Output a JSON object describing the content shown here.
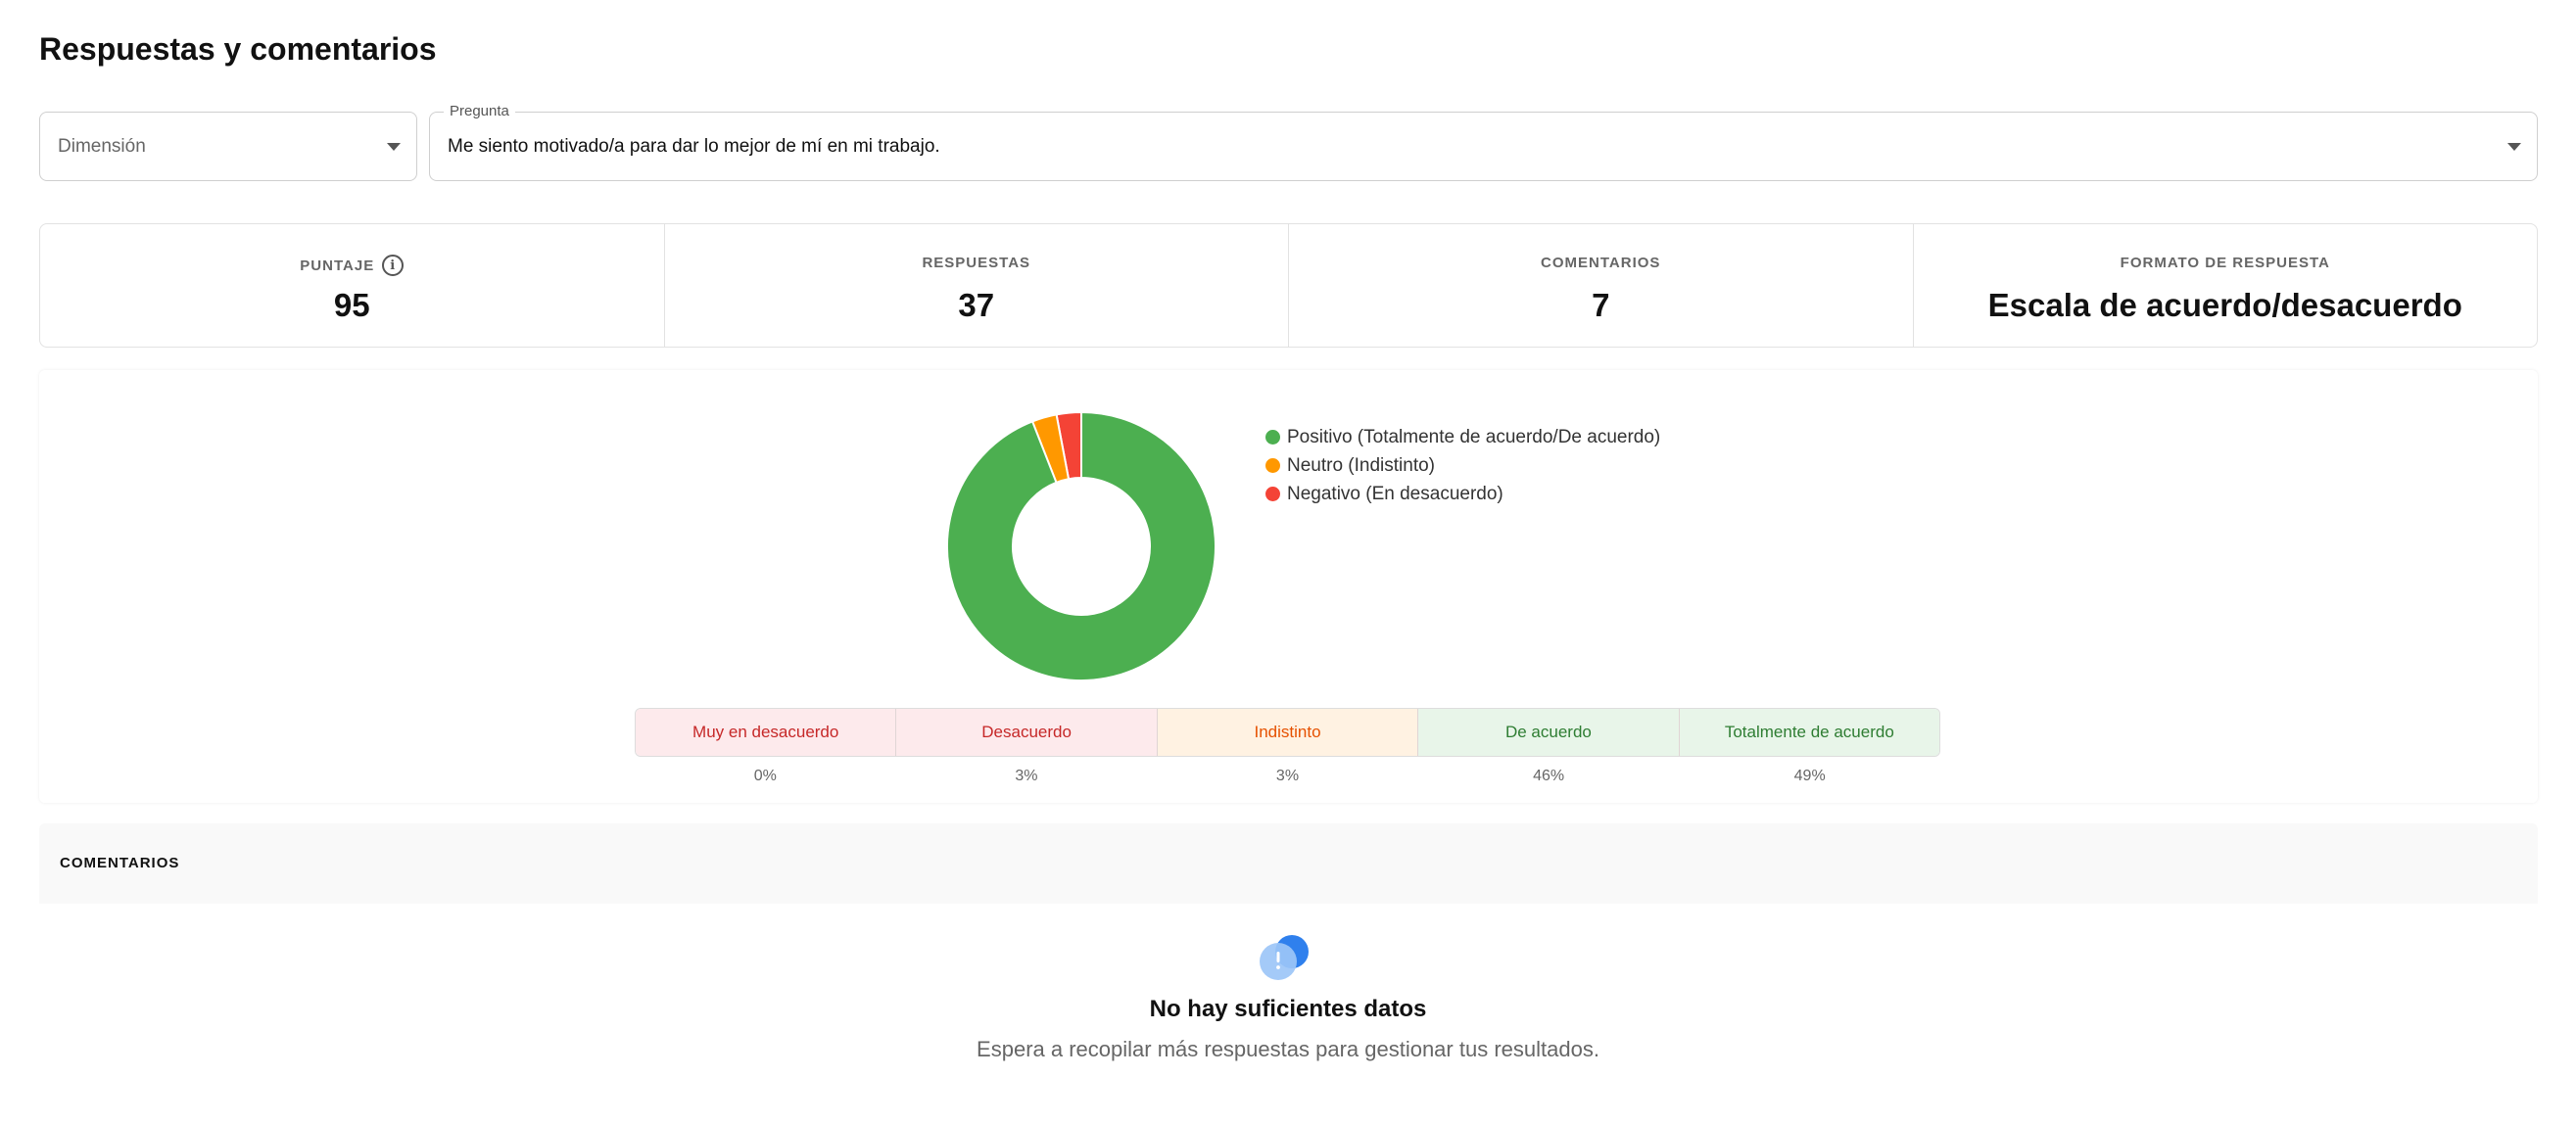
{
  "page": {
    "title": "Respuestas y comentarios"
  },
  "filters": {
    "dimension": {
      "placeholder": "Dimensión"
    },
    "question": {
      "label": "Pregunta",
      "value": "Me siento motivado/a para dar lo mejor de mí en mi trabajo."
    }
  },
  "stats": [
    {
      "label": "PUNTAJE",
      "value": "95",
      "info_icon": "info-circle-icon"
    },
    {
      "label": "RESPUESTAS",
      "value": "37"
    },
    {
      "label": "COMENTARIOS",
      "value": "7"
    },
    {
      "label": "FORMATO DE RESPUESTA",
      "value": "Escala de acuerdo/desacuerdo"
    }
  ],
  "chart_data": {
    "type": "pie",
    "series": [
      {
        "name": "Positivo (Totalmente de acuerdo/De acuerdo)",
        "value": 95,
        "color": "#4caf50"
      },
      {
        "name": "Neutro (Indistinto)",
        "value": 3,
        "color": "#ff9800"
      },
      {
        "name": "Negativo (En desacuerdo)",
        "value": 3,
        "color": "#f44336"
      }
    ]
  },
  "scale": [
    {
      "label": "Muy en desacuerdo",
      "pct": "0%",
      "bg": "#fdeaec",
      "fg": "#c62828"
    },
    {
      "label": "Desacuerdo",
      "pct": "3%",
      "bg": "#fdeaec",
      "fg": "#c62828"
    },
    {
      "label": "Indistinto",
      "pct": "3%",
      "bg": "#fff2e2",
      "fg": "#e65100"
    },
    {
      "label": "De acuerdo",
      "pct": "46%",
      "bg": "#e8f5e9",
      "fg": "#2e7d32"
    },
    {
      "label": "Totalmente de acuerdo",
      "pct": "49%",
      "bg": "#e8f5e9",
      "fg": "#2e7d32"
    }
  ],
  "comments": {
    "header": "COMENTARIOS",
    "empty_icon": "alert-bubble-icon",
    "empty_title": "No hay suficientes datos",
    "empty_desc": "Espera a recopilar más respuestas para gestionar tus resultados."
  }
}
